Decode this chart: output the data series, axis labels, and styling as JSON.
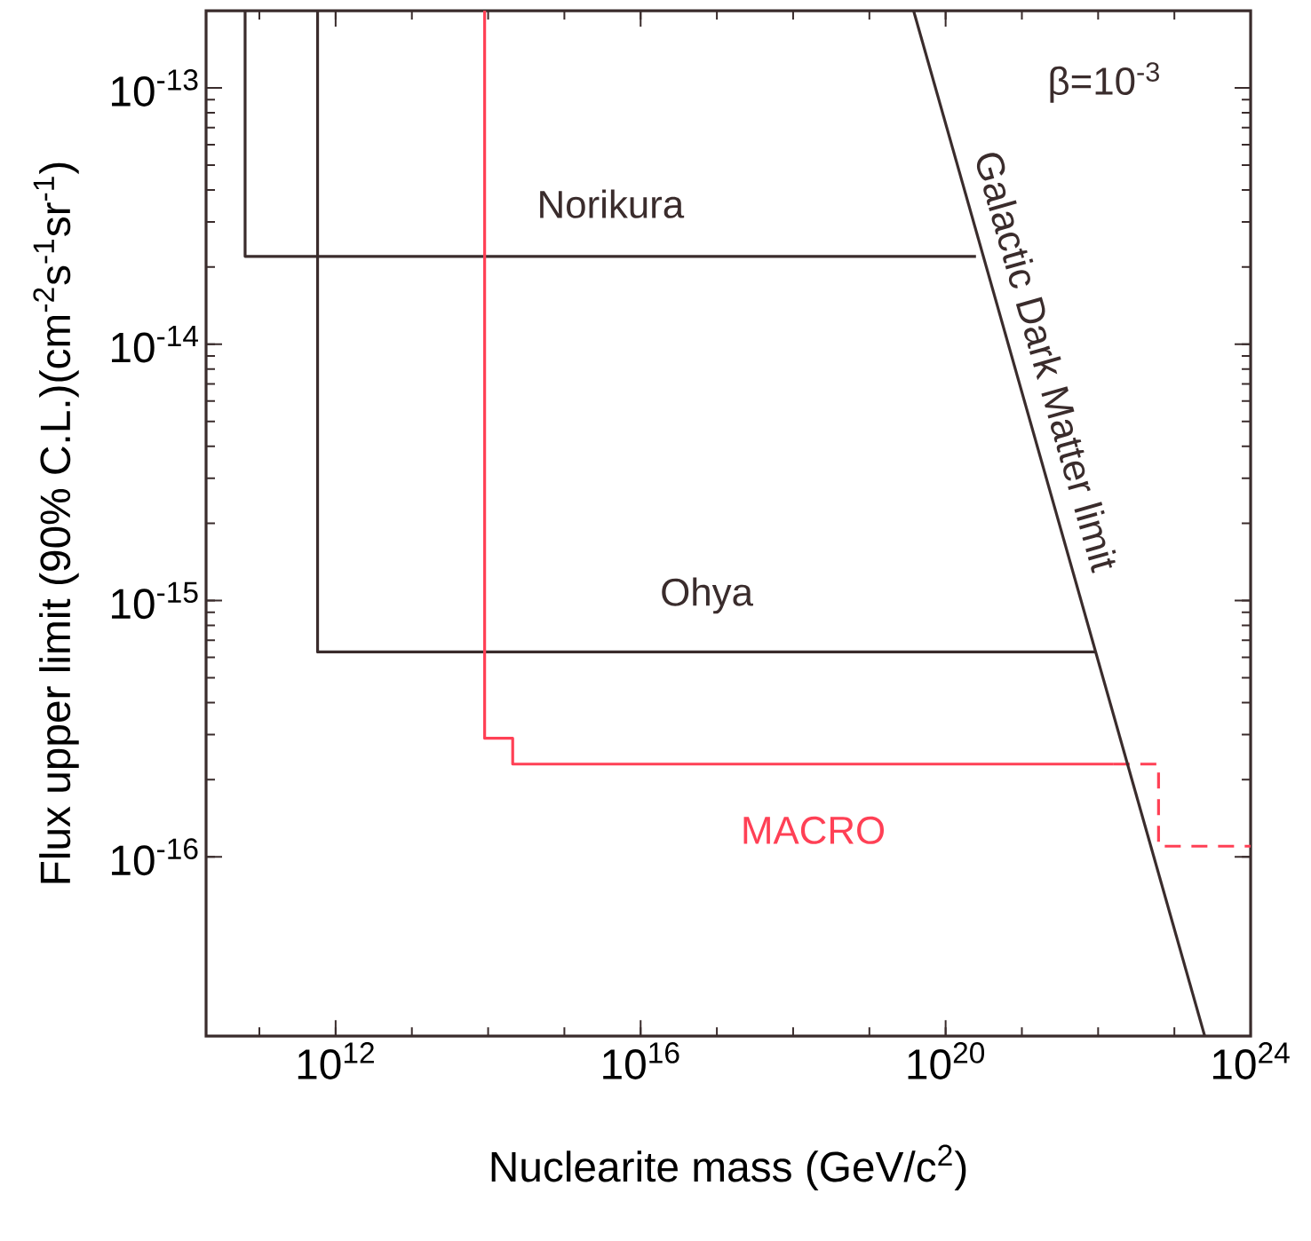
{
  "chart_data": {
    "type": "line",
    "xlabel": "Nuclearite mass (GeV/c$^{2}$)",
    "ylabel": "Flux upper limit (90% C.L.)(cm$^{-2}$s$^{-1}$sr$^{-1}$)",
    "log": "xy",
    "xlim": [
      20000000000.0,
      1e+24
    ],
    "ylim": [
      2e-17,
      2e-13
    ],
    "xticks": [
      {
        "value": 1000000000000.0,
        "label": "10$^{12}$"
      },
      {
        "value": 1e+16,
        "label": "10$^{16}$"
      },
      {
        "value": 1e+20,
        "label": "10$^{20}$"
      },
      {
        "value": 1e+24,
        "label": "10$^{24}$"
      }
    ],
    "yticks": [
      {
        "value": 1e-16,
        "label": "10$^{-16}$"
      },
      {
        "value": 1e-15,
        "label": "10$^{-15}$"
      },
      {
        "value": 1e-14,
        "label": "10$^{-14}$"
      },
      {
        "value": 1e-13,
        "label": "10$^{-13}$"
      }
    ],
    "marker": "none",
    "series": [
      {
        "name": "Norikura",
        "color": "#3a2c2c",
        "line_style": "solid",
        "x": [
          65000000000.0,
          65000000000.0,
          2.5e+20
        ],
        "values": [
          2e-13,
          2.2e-14,
          2.2e-14
        ]
      },
      {
        "name": "Ohya",
        "color": "#3a2c2c",
        "line_style": "solid",
        "x": [
          580000000000.0,
          580000000000.0,
          9.3e+21
        ],
        "values": [
          2e-13,
          6.3e-16,
          6.3e-16
        ]
      },
      {
        "name": "MACRO",
        "color": "#ff4055",
        "line_style": "solid",
        "x": [
          90000000000000.0,
          90000000000000.0,
          210000000000000.0,
          210000000000000.0,
          1.6e+22
        ],
        "values": [
          2e-13,
          2.9e-16,
          2.9e-16,
          2.3e-16,
          2.3e-16
        ]
      },
      {
        "color": "#ff4055",
        "line_style": "dashed",
        "x": [
          1.6e+22,
          6.2e+22,
          6.2e+22,
          1e+24
        ],
        "values": [
          2.3e-16,
          2.3e-16,
          1.1e-16,
          1.1e-16
        ]
      },
      {
        "name": "Galactic Dark Matter limit",
        "color": "#3a2c2c",
        "line_style": "solid",
        "x": [
          3.8e+19,
          2.5e+23
        ],
        "values": [
          2e-13,
          2e-17
        ]
      }
    ],
    "annotations": [
      "β=10$^{-3}$"
    ]
  }
}
